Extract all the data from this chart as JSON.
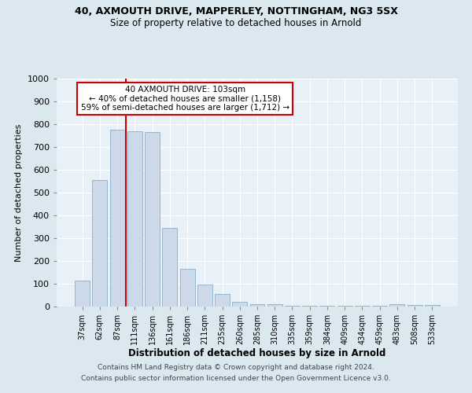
{
  "title1": "40, AXMOUTH DRIVE, MAPPERLEY, NOTTINGHAM, NG3 5SX",
  "title2": "Size of property relative to detached houses in Arnold",
  "xlabel": "Distribution of detached houses by size in Arnold",
  "ylabel": "Number of detached properties",
  "categories": [
    "37sqm",
    "62sqm",
    "87sqm",
    "111sqm",
    "136sqm",
    "161sqm",
    "186sqm",
    "211sqm",
    "235sqm",
    "260sqm",
    "285sqm",
    "310sqm",
    "335sqm",
    "359sqm",
    "384sqm",
    "409sqm",
    "434sqm",
    "459sqm",
    "483sqm",
    "508sqm",
    "533sqm"
  ],
  "values": [
    115,
    555,
    775,
    770,
    765,
    345,
    165,
    98,
    55,
    20,
    12,
    10,
    5,
    4,
    3,
    3,
    2,
    2,
    10,
    8,
    8
  ],
  "bar_color": "#ccd9e8",
  "bar_edge_color": "#8aaec8",
  "red_line_index": 3,
  "annotation_text": "40 AXMOUTH DRIVE: 103sqm\n← 40% of detached houses are smaller (1,158)\n59% of semi-detached houses are larger (1,712) →",
  "annotation_box_color": "#ffffff",
  "annotation_box_edge_color": "#cc0000",
  "vline_color": "#cc0000",
  "ylim": [
    0,
    1000
  ],
  "yticks": [
    0,
    100,
    200,
    300,
    400,
    500,
    600,
    700,
    800,
    900,
    1000
  ],
  "footer1": "Contains HM Land Registry data © Crown copyright and database right 2024.",
  "footer2": "Contains public sector information licensed under the Open Government Licence v3.0.",
  "bg_color": "#dce8f0",
  "plot_bg_color": "#e8f0f8"
}
